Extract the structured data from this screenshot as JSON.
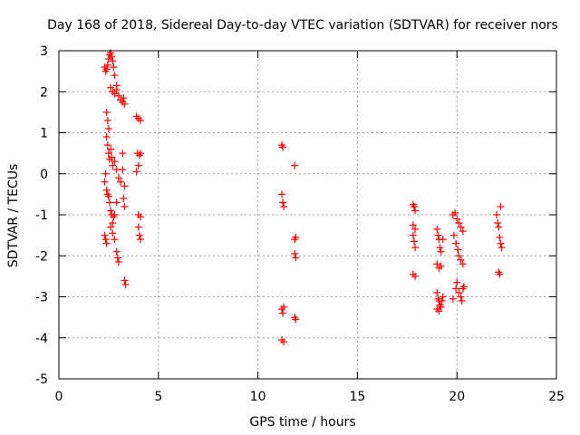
{
  "chart_data": {
    "type": "scatter",
    "title": "Day 168 of 2018, Sidereal Day-to-day VTEC variation (SDTVAR) for receiver nors",
    "xlabel": "GPS time / hours",
    "ylabel": "SDTVAR / TECUs",
    "xlim": [
      0,
      25
    ],
    "ylim": [
      -5,
      3
    ],
    "xticks": [
      "0",
      "5",
      "10",
      "15",
      "20",
      "25"
    ],
    "yticks": [
      "-5",
      "-4",
      "-3",
      "-2",
      "-1",
      "0",
      "1",
      "2",
      "3"
    ],
    "grid": true,
    "marker": "+",
    "marker_color": "#ff0000",
    "series": [
      {
        "name": "SDTVAR",
        "points": [
          [
            2.3,
            2.6
          ],
          [
            2.35,
            2.5
          ],
          [
            2.4,
            2.55
          ],
          [
            2.45,
            2.65
          ],
          [
            2.5,
            2.8
          ],
          [
            2.55,
            2.9
          ],
          [
            2.6,
            2.95
          ],
          [
            2.65,
            2.85
          ],
          [
            2.7,
            2.75
          ],
          [
            2.75,
            2.6
          ],
          [
            2.8,
            2.4
          ],
          [
            2.6,
            2.1
          ],
          [
            2.7,
            2.0
          ],
          [
            2.8,
            1.95
          ],
          [
            2.9,
            2.05
          ],
          [
            3.0,
            1.9
          ],
          [
            3.1,
            1.8
          ],
          [
            3.2,
            1.75
          ],
          [
            3.3,
            1.7
          ],
          [
            3.25,
            1.85
          ],
          [
            2.9,
            2.15
          ],
          [
            2.4,
            1.5
          ],
          [
            2.45,
            1.3
          ],
          [
            2.5,
            1.1
          ],
          [
            2.4,
            0.9
          ],
          [
            2.45,
            0.7
          ],
          [
            2.5,
            0.5
          ],
          [
            2.55,
            0.35
          ],
          [
            2.6,
            0.6
          ],
          [
            2.65,
            0.4
          ],
          [
            2.7,
            0.2
          ],
          [
            2.8,
            0.3
          ],
          [
            2.9,
            0.1
          ],
          [
            3.0,
            -0.1
          ],
          [
            3.1,
            -0.2
          ],
          [
            3.2,
            0.1
          ],
          [
            3.2,
            0.5
          ],
          [
            3.3,
            -0.3
          ],
          [
            3.25,
            -0.6
          ],
          [
            3.3,
            -0.8
          ],
          [
            2.35,
            0.0
          ],
          [
            2.3,
            -0.2
          ],
          [
            2.4,
            -0.4
          ],
          [
            2.45,
            -0.5
          ],
          [
            2.5,
            -0.55
          ],
          [
            2.55,
            -0.7
          ],
          [
            2.6,
            -0.9
          ],
          [
            2.65,
            -1.0
          ],
          [
            2.7,
            -1.2
          ],
          [
            2.75,
            -1.05
          ],
          [
            2.6,
            -1.3
          ],
          [
            2.3,
            -1.5
          ],
          [
            2.35,
            -1.6
          ],
          [
            2.4,
            -1.7
          ],
          [
            2.7,
            -1.45
          ],
          [
            2.8,
            -1.6
          ],
          [
            2.9,
            -1.9
          ],
          [
            2.95,
            -2.05
          ],
          [
            3.0,
            -2.15
          ],
          [
            2.8,
            -1.0
          ],
          [
            2.9,
            -0.7
          ],
          [
            3.3,
            -2.6
          ],
          [
            3.35,
            -2.7
          ],
          [
            3.9,
            1.4
          ],
          [
            4.0,
            1.35
          ],
          [
            4.1,
            1.3
          ],
          [
            3.95,
            0.5
          ],
          [
            4.05,
            0.45
          ],
          [
            4.1,
            0.5
          ],
          [
            4.0,
            0.2
          ],
          [
            3.9,
            0.05
          ],
          [
            4.0,
            -1.0
          ],
          [
            4.1,
            -1.05
          ],
          [
            4.0,
            -1.3
          ],
          [
            4.05,
            -1.5
          ],
          [
            4.1,
            -1.6
          ],
          [
            11.2,
            0.7
          ],
          [
            11.25,
            0.65
          ],
          [
            11.2,
            -0.5
          ],
          [
            11.25,
            -0.7
          ],
          [
            11.3,
            -0.8
          ],
          [
            11.2,
            -3.3
          ],
          [
            11.25,
            -3.4
          ],
          [
            11.3,
            -3.25
          ],
          [
            11.2,
            -4.05
          ],
          [
            11.3,
            -4.1
          ],
          [
            11.85,
            0.2
          ],
          [
            11.9,
            -1.55
          ],
          [
            11.85,
            -1.6
          ],
          [
            11.85,
            -1.95
          ],
          [
            11.9,
            -2.05
          ],
          [
            11.85,
            -3.5
          ],
          [
            11.9,
            -3.55
          ],
          [
            17.8,
            -0.75
          ],
          [
            17.85,
            -0.8
          ],
          [
            17.9,
            -0.9
          ],
          [
            17.8,
            -1.25
          ],
          [
            17.9,
            -1.35
          ],
          [
            17.8,
            -1.5
          ],
          [
            17.85,
            -1.65
          ],
          [
            17.9,
            -1.8
          ],
          [
            17.8,
            -2.45
          ],
          [
            17.9,
            -2.5
          ],
          [
            19.0,
            -1.35
          ],
          [
            19.05,
            -1.5
          ],
          [
            19.1,
            -1.6
          ],
          [
            19.15,
            -1.8
          ],
          [
            19.2,
            -1.9
          ],
          [
            19.0,
            -2.2
          ],
          [
            19.1,
            -2.3
          ],
          [
            19.2,
            -2.25
          ],
          [
            19.0,
            -2.9
          ],
          [
            19.05,
            -3.05
          ],
          [
            19.1,
            -3.1
          ],
          [
            19.15,
            -3.2
          ],
          [
            19.2,
            -3.25
          ],
          [
            19.25,
            -3.1
          ],
          [
            19.3,
            -3.0
          ],
          [
            19.0,
            -3.3
          ],
          [
            19.1,
            -3.35
          ],
          [
            19.3,
            -1.6
          ],
          [
            19.8,
            -1.0
          ],
          [
            19.9,
            -0.95
          ],
          [
            20.0,
            -1.1
          ],
          [
            20.1,
            -1.2
          ],
          [
            20.2,
            -1.3
          ],
          [
            20.3,
            -1.4
          ],
          [
            19.85,
            -1.5
          ],
          [
            19.95,
            -1.7
          ],
          [
            20.05,
            -1.85
          ],
          [
            20.1,
            -2.0
          ],
          [
            20.2,
            -2.1
          ],
          [
            20.3,
            -2.2
          ],
          [
            20.0,
            -2.65
          ],
          [
            19.95,
            -2.8
          ],
          [
            20.1,
            -2.9
          ],
          [
            20.2,
            -3.0
          ],
          [
            20.3,
            -2.8
          ],
          [
            20.35,
            -2.75
          ],
          [
            19.8,
            -3.05
          ],
          [
            20.25,
            -3.1
          ],
          [
            22.0,
            -1.0
          ],
          [
            22.05,
            -1.2
          ],
          [
            22.1,
            -1.3
          ],
          [
            22.15,
            -1.55
          ],
          [
            22.2,
            -1.7
          ],
          [
            22.25,
            -1.8
          ],
          [
            22.2,
            -0.8
          ],
          [
            22.1,
            -2.4
          ],
          [
            22.15,
            -2.45
          ]
        ]
      }
    ]
  }
}
